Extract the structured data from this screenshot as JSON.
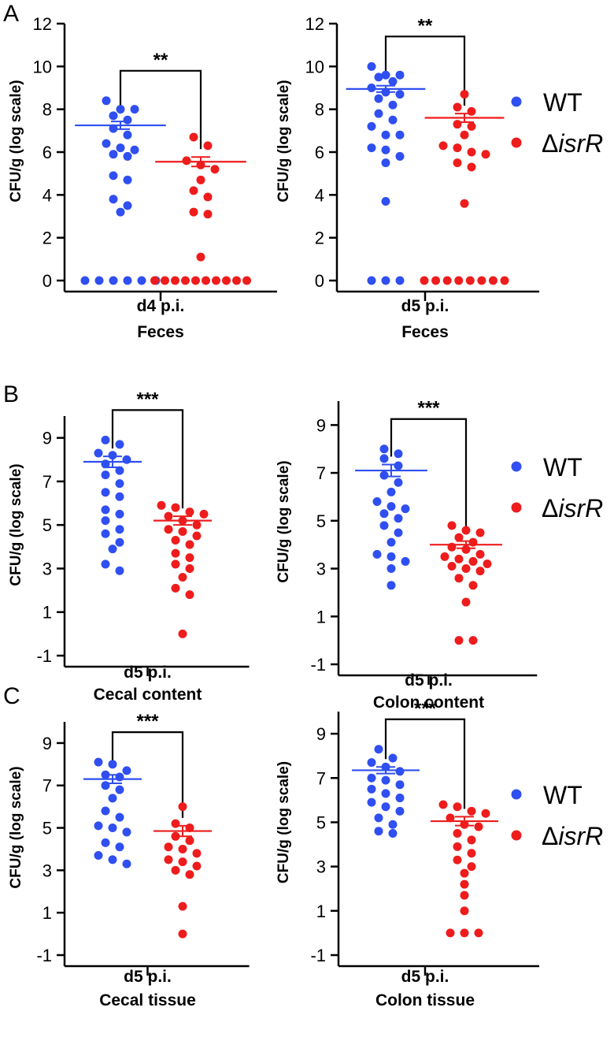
{
  "colors": {
    "wt": "#2f4ff0",
    "mut": "#ee1c1c",
    "axis": "#000000"
  },
  "panels": [
    {
      "id": "A",
      "label": "A"
    },
    {
      "id": "B",
      "label": "B"
    },
    {
      "id": "C",
      "label": "C"
    }
  ],
  "legends": [
    {
      "wt": "WT",
      "mut_prefix": "Δ",
      "mut_italic": "isrR"
    },
    {
      "wt": "WT",
      "mut_prefix": "Δ",
      "mut_italic": "isrR"
    },
    {
      "wt": "WT",
      "mut_prefix": "Δ",
      "mut_italic": "isrR"
    }
  ],
  "chart_data": [
    {
      "type": "scatter",
      "panel": "A",
      "ylabel": "CFU/g (log scale)",
      "xlabel_line1": "d4 p.i.",
      "xlabel_line2": "Feces",
      "ylim": [
        0,
        12
      ],
      "yticks": [
        0,
        2,
        4,
        6,
        8,
        10,
        12
      ],
      "significance": "**",
      "series": [
        {
          "name": "WT",
          "mean": 7.25,
          "sem": 0.18,
          "points": [
            8.4,
            8.0,
            8.0,
            7.7,
            7.5,
            7.1,
            6.8,
            6.4,
            6.2,
            6.1,
            5.9,
            5.8,
            4.9,
            4.7,
            3.8,
            3.5,
            3.2,
            0,
            0,
            0,
            0,
            0,
            0
          ]
        },
        {
          "name": "ΔisrR",
          "mean": 5.55,
          "sem": 0.22,
          "points": [
            6.7,
            6.3,
            5.6,
            5.4,
            5.2,
            4.7,
            4.2,
            3.9,
            3.2,
            3.1,
            1.1,
            0,
            0,
            0,
            0,
            0,
            0,
            0,
            0,
            0,
            0
          ]
        }
      ]
    },
    {
      "type": "scatter",
      "panel": "A",
      "ylabel": "CFU/g (log scale)",
      "xlabel_line1": "d5 p.i.",
      "xlabel_line2": "Feces",
      "ylim": [
        0,
        12
      ],
      "yticks": [
        0,
        2,
        4,
        6,
        8,
        10,
        12
      ],
      "significance": "**",
      "series": [
        {
          "name": "WT",
          "mean": 8.95,
          "sem": 0.15,
          "points": [
            10.0,
            9.6,
            9.6,
            9.5,
            9.3,
            9.0,
            8.8,
            8.7,
            8.5,
            8.2,
            7.8,
            7.5,
            7.2,
            6.8,
            6.8,
            6.2,
            6.1,
            5.8,
            5.5,
            3.7,
            0,
            0,
            0
          ]
        },
        {
          "name": "ΔisrR",
          "mean": 7.6,
          "sem": 0.2,
          "points": [
            8.7,
            8.1,
            7.9,
            7.3,
            7.2,
            6.8,
            6.3,
            6.2,
            6.0,
            5.9,
            5.5,
            5.3,
            3.6,
            0,
            0,
            0,
            0,
            0,
            0,
            0,
            0
          ]
        }
      ]
    },
    {
      "type": "scatter",
      "panel": "B",
      "ylabel": "CFU/g (log scale)",
      "xlabel_line1": "d5 p.i.",
      "xlabel_line2": "Cecal content",
      "ylim": [
        -1,
        10
      ],
      "yticks": [
        -1,
        1,
        3,
        5,
        7,
        9
      ],
      "significance": "***",
      "series": [
        {
          "name": "WT",
          "mean": 7.9,
          "sem": 0.25,
          "points": [
            8.9,
            8.7,
            8.3,
            8.2,
            8.0,
            7.8,
            7.5,
            7.3,
            6.9,
            6.5,
            6.3,
            5.7,
            5.5,
            5.2,
            4.8,
            4.6,
            4.2,
            3.9,
            3.2,
            2.9
          ]
        },
        {
          "name": "ΔisrR",
          "mean": 5.2,
          "sem": 0.2,
          "points": [
            5.9,
            5.8,
            5.6,
            5.5,
            5.4,
            5.2,
            5.0,
            4.8,
            4.7,
            4.5,
            4.3,
            4.1,
            3.7,
            3.5,
            3.2,
            3.0,
            2.6,
            2.1,
            1.8,
            0
          ]
        }
      ]
    },
    {
      "type": "scatter",
      "panel": "B",
      "ylabel": "CFU/g (log scale)",
      "xlabel_line1": "d5 p.i.",
      "xlabel_line2": "Colon content",
      "ylim": [
        -1,
        10
      ],
      "yticks": [
        -1,
        1,
        3,
        5,
        7,
        9
      ],
      "significance": "***",
      "series": [
        {
          "name": "WT",
          "mean": 7.1,
          "sem": 0.25,
          "points": [
            8.0,
            7.8,
            7.6,
            7.3,
            6.9,
            6.6,
            6.2,
            5.8,
            5.6,
            5.5,
            5.3,
            5.1,
            4.8,
            4.5,
            4.1,
            3.6,
            3.5,
            3.3,
            3.0,
            2.3
          ]
        },
        {
          "name": "ΔisrR",
          "mean": 4.0,
          "sem": 0.15,
          "points": [
            4.8,
            4.6,
            4.5,
            4.3,
            4.1,
            3.9,
            3.8,
            3.6,
            3.5,
            3.4,
            3.3,
            3.2,
            3.1,
            3.0,
            2.9,
            2.6,
            2.3,
            1.6,
            0,
            0
          ]
        }
      ]
    },
    {
      "type": "scatter",
      "panel": "C",
      "ylabel": "CFU/g (log scale)",
      "xlabel_line1": "d5 p.i.",
      "xlabel_line2": "Cecal tissue",
      "ylim": [
        -1,
        10
      ],
      "yticks": [
        -1,
        1,
        3,
        5,
        7,
        9
      ],
      "significance": "***",
      "series": [
        {
          "name": "WT",
          "mean": 7.3,
          "sem": 0.2,
          "points": [
            8.1,
            8.0,
            7.7,
            7.5,
            7.4,
            7.0,
            6.8,
            6.4,
            5.8,
            5.5,
            5.1,
            5.0,
            4.8,
            4.3,
            4.1,
            3.7,
            3.5,
            3.3
          ]
        },
        {
          "name": "ΔisrR",
          "mean": 4.85,
          "sem": 0.25,
          "points": [
            6.0,
            5.2,
            5.0,
            4.6,
            4.4,
            4.1,
            4.0,
            3.8,
            3.5,
            3.4,
            3.2,
            3.0,
            2.8,
            1.3,
            0
          ]
        }
      ]
    },
    {
      "type": "scatter",
      "panel": "C",
      "ylabel": "CFU/g (log scale)",
      "xlabel_line1": "d5 p.i.",
      "xlabel_line2": "Colon tissue",
      "ylim": [
        -1,
        10
      ],
      "yticks": [
        -1,
        1,
        3,
        5,
        7,
        9
      ],
      "significance": "***",
      "series": [
        {
          "name": "WT",
          "mean": 7.35,
          "sem": 0.15,
          "points": [
            8.3,
            7.9,
            7.7,
            7.5,
            7.3,
            7.0,
            6.9,
            6.7,
            6.5,
            6.3,
            6.1,
            5.9,
            5.7,
            5.5,
            5.2,
            4.9,
            4.6,
            4.5
          ]
        },
        {
          "name": "ΔisrR",
          "mean": 5.05,
          "sem": 0.2,
          "points": [
            5.8,
            5.7,
            5.5,
            5.4,
            5.2,
            4.9,
            4.8,
            4.5,
            4.2,
            3.9,
            3.6,
            3.3,
            3.0,
            2.7,
            2.2,
            1.7,
            1.0,
            0,
            0,
            0
          ]
        }
      ]
    }
  ]
}
